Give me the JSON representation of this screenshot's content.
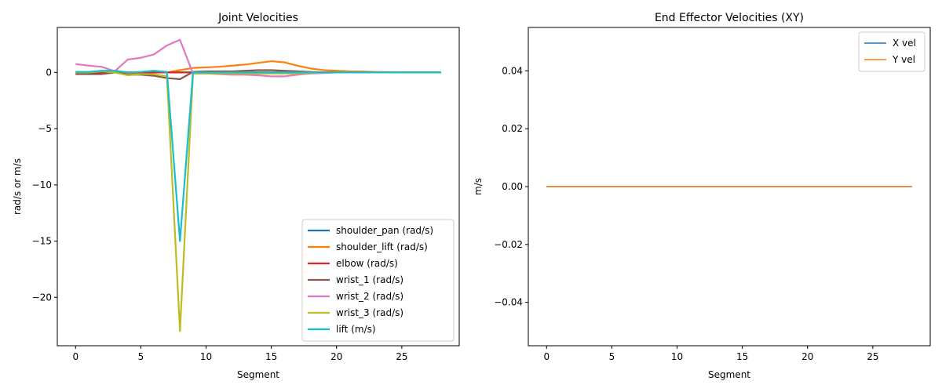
{
  "chart_data": [
    {
      "type": "line",
      "title": "Joint Velocities",
      "xlabel": "Segment",
      "ylabel": "rad/s or m/s",
      "xlim": [
        -1.4,
        29.4
      ],
      "ylim": [
        -24.3,
        4.0
      ],
      "xticks": [
        0,
        5,
        10,
        15,
        20,
        25
      ],
      "yticks": [
        0,
        -5,
        -10,
        -15,
        -20
      ],
      "grid": false,
      "legend_position": "lower-right",
      "x": [
        0,
        1,
        2,
        3,
        4,
        5,
        6,
        7,
        8,
        9,
        10,
        11,
        12,
        13,
        14,
        15,
        16,
        17,
        18,
        19,
        20,
        21,
        22,
        23,
        24,
        25,
        26,
        27,
        28
      ],
      "series": [
        {
          "name": "shoulder_pan (rad/s)",
          "color": "#1f77b4",
          "values": [
            0.0,
            0.0,
            0.0,
            0.0,
            0.0,
            0.0,
            0.0,
            0.0,
            0.0,
            0.0,
            0.0,
            0.0,
            0.0,
            0.0,
            0.0,
            0.0,
            0.0,
            0.0,
            0.0,
            0.0,
            0.0,
            0.0,
            0.0,
            0.0,
            0.0,
            0.0,
            0.0,
            0.0,
            0.0
          ]
        },
        {
          "name": "shoulder_lift (rad/s)",
          "color": "#ff7f0e",
          "values": [
            -0.1,
            -0.1,
            -0.1,
            0.0,
            -0.1,
            0.0,
            0.0,
            0.0,
            0.2,
            0.4,
            0.45,
            0.5,
            0.6,
            0.7,
            0.85,
            1.0,
            0.9,
            0.6,
            0.35,
            0.2,
            0.15,
            0.1,
            0.08,
            0.05,
            0.03,
            0.02,
            0.01,
            0.0,
            0.0
          ]
        },
        {
          "name": "elbow (rad/s)",
          "color": "#d62728",
          "values": [
            0.0,
            0.0,
            0.0,
            0.0,
            0.0,
            0.0,
            0.0,
            0.0,
            0.0,
            0.0,
            0.0,
            0.0,
            0.0,
            0.0,
            0.0,
            0.0,
            0.0,
            0.0,
            0.0,
            0.0,
            0.0,
            0.0,
            0.0,
            0.0,
            0.0,
            0.0,
            0.0,
            0.0,
            0.0
          ]
        },
        {
          "name": "wrist_1 (rad/s)",
          "color": "#8c564b",
          "values": [
            -0.15,
            -0.15,
            -0.15,
            0.0,
            -0.2,
            -0.2,
            -0.3,
            -0.5,
            -0.6,
            0.05,
            0.1,
            0.1,
            0.1,
            0.15,
            0.2,
            0.2,
            0.15,
            0.1,
            0.05,
            0.0,
            0.0,
            0.0,
            0.0,
            0.0,
            0.0,
            0.0,
            0.0,
            0.0,
            0.0
          ]
        },
        {
          "name": "wrist_2 (rad/s)",
          "color": "#e377c2",
          "values": [
            0.75,
            0.6,
            0.5,
            0.1,
            1.15,
            1.3,
            1.6,
            2.4,
            2.9,
            -0.1,
            -0.1,
            -0.15,
            -0.2,
            -0.2,
            -0.25,
            -0.35,
            -0.35,
            -0.2,
            -0.1,
            -0.05,
            0.0,
            0.0,
            0.0,
            0.0,
            0.0,
            0.0,
            0.0,
            0.0,
            0.0
          ]
        },
        {
          "name": "wrist_3 (rad/s)",
          "color": "#bcbd22",
          "values": [
            0.0,
            0.0,
            0.1,
            0.0,
            -0.25,
            -0.15,
            -0.15,
            -0.35,
            -23.0,
            -0.1,
            -0.1,
            -0.1,
            -0.1,
            -0.1,
            -0.1,
            -0.1,
            -0.1,
            -0.1,
            -0.05,
            0.0,
            0.0,
            0.0,
            0.0,
            0.0,
            0.0,
            0.0,
            0.0,
            0.0,
            0.0
          ]
        },
        {
          "name": "lift (m/s)",
          "color": "#17becf",
          "values": [
            0.05,
            0.05,
            0.15,
            0.15,
            0.0,
            0.05,
            0.15,
            0.05,
            -15.0,
            0.0,
            0.0,
            0.0,
            0.0,
            0.0,
            0.0,
            0.0,
            0.0,
            0.0,
            0.0,
            0.0,
            0.0,
            0.0,
            0.0,
            0.0,
            0.0,
            0.0,
            0.0,
            0.0,
            0.0
          ]
        }
      ]
    },
    {
      "type": "line",
      "title": "End Effector Velocities (XY)",
      "xlabel": "Segment",
      "ylabel": "m/s",
      "xlim": [
        -1.4,
        29.4
      ],
      "ylim": [
        -0.055,
        0.055
      ],
      "xticks": [
        0,
        5,
        10,
        15,
        20,
        25
      ],
      "yticks": [
        0.04,
        0.02,
        0.0,
        -0.02,
        -0.04
      ],
      "ytick_labels": [
        "0.04",
        "0.02",
        "0.00",
        "−0.02",
        "−0.04"
      ],
      "grid": false,
      "legend_position": "upper-right",
      "x": [
        0,
        1,
        2,
        3,
        4,
        5,
        6,
        7,
        8,
        9,
        10,
        11,
        12,
        13,
        14,
        15,
        16,
        17,
        18,
        19,
        20,
        21,
        22,
        23,
        24,
        25,
        26,
        27,
        28
      ],
      "series": [
        {
          "name": "X vel",
          "color": "#1f77b4",
          "values": [
            0,
            0,
            0,
            0,
            0,
            0,
            0,
            0,
            0,
            0,
            0,
            0,
            0,
            0,
            0,
            0,
            0,
            0,
            0,
            0,
            0,
            0,
            0,
            0,
            0,
            0,
            0,
            0,
            0
          ]
        },
        {
          "name": "Y vel",
          "color": "#ff7f0e",
          "values": [
            0,
            0,
            0,
            0,
            0,
            0,
            0,
            0,
            0,
            0,
            0,
            0,
            0,
            0,
            0,
            0,
            0,
            0,
            0,
            0,
            0,
            0,
            0,
            0,
            0,
            0,
            0,
            0,
            0
          ]
        }
      ]
    }
  ]
}
